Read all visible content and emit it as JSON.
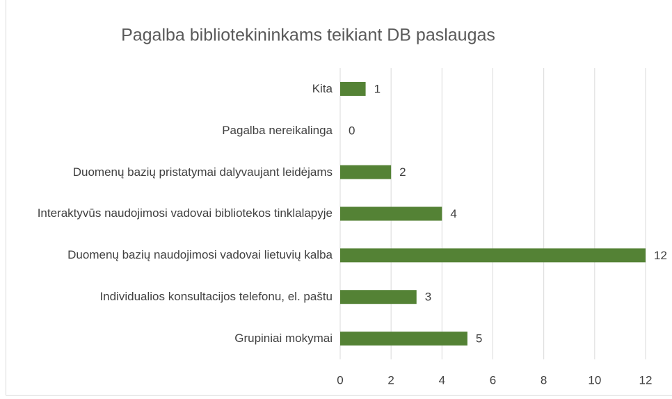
{
  "chart_data": {
    "type": "bar",
    "orientation": "horizontal",
    "title": "Pagalba bibliotekininkams teikiant DB paslaugas",
    "categories": [
      "Kita",
      "Pagalba nereikalinga",
      "Duomenų bazių pristatymai dalyvaujant leidėjams",
      "Interaktyvūs naudojimosi vadovai bibliotekos tinklalapyje",
      "Duomenų bazių naudojimosi vadovai lietuvių kalba",
      "Individualios konsultacijos telefonu, el. paštu",
      "Grupiniai mokymai"
    ],
    "values": [
      1,
      0,
      2,
      4,
      12,
      3,
      5
    ],
    "color": "#548235",
    "xlim": [
      0,
      12
    ],
    "xticks": [
      0,
      2,
      4,
      6,
      8,
      10,
      12
    ],
    "grid": true
  }
}
